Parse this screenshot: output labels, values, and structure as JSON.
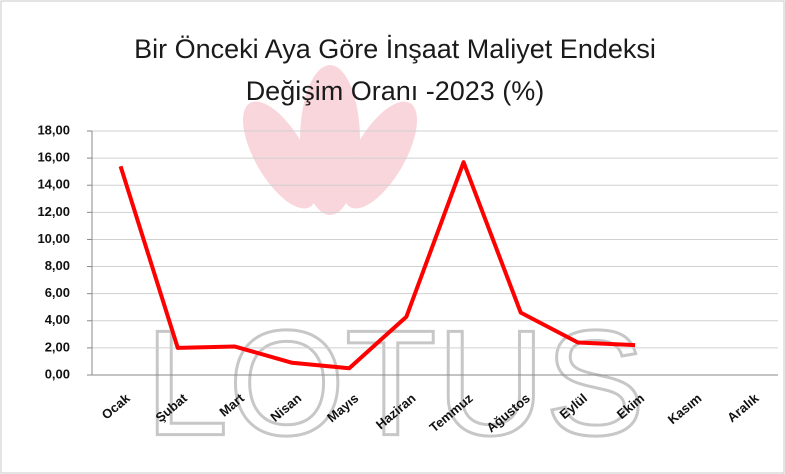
{
  "chart_data": {
    "type": "line",
    "title": "Bir Önceki Aya Göre İnşaat Maliyet Endeksi Değişim Oranı -2023 (%)",
    "watermark": "LOTUS",
    "categories": [
      "Ocak",
      "Şubat",
      "Mart",
      "Nisan",
      "Mayıs",
      "Haziran",
      "Temmuz",
      "Ağustos",
      "Eylül",
      "Ekim",
      "Kasım",
      "Aralık"
    ],
    "values": [
      15.4,
      2.0,
      2.1,
      0.9,
      0.5,
      4.3,
      15.7,
      4.6,
      2.4,
      2.2,
      null,
      null
    ],
    "color": "#ff0000",
    "ylim": [
      0,
      18
    ],
    "yticks": [
      {
        "value": 0,
        "label": "0,00"
      },
      {
        "value": 2,
        "label": "2,00"
      },
      {
        "value": 4,
        "label": "4,00"
      },
      {
        "value": 6,
        "label": "6,00"
      },
      {
        "value": 8,
        "label": "8,00"
      },
      {
        "value": 10,
        "label": "10,00"
      },
      {
        "value": 12,
        "label": "12,00"
      },
      {
        "value": 14,
        "label": "14,00"
      },
      {
        "value": 16,
        "label": "16,00"
      },
      {
        "value": 18,
        "label": "18,00"
      }
    ],
    "grid": true
  }
}
